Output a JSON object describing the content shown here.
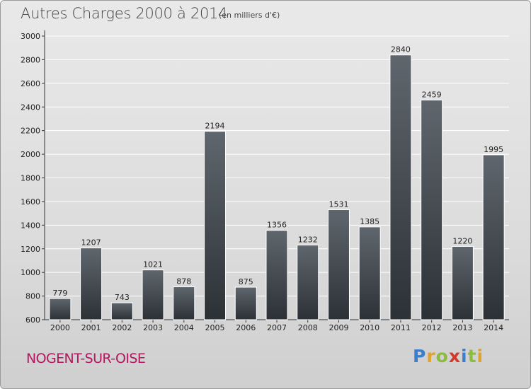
{
  "header": {
    "title": "Autres Charges 2000 à 2014",
    "subtitle": "(en milliers d'€)"
  },
  "footer": {
    "commune": "NOGENT-SUR-OISE",
    "logo_letters": [
      {
        "ch": "P",
        "color": "#3a7fcf"
      },
      {
        "ch": "r",
        "color": "#e0a32a"
      },
      {
        "ch": "o",
        "color": "#8cbd3a"
      },
      {
        "ch": "x",
        "color": "#d03a2a"
      },
      {
        "ch": "i",
        "color": "#3a7fcf"
      },
      {
        "ch": "t",
        "color": "#8cbd3a"
      },
      {
        "ch": "i",
        "color": "#e0a32a"
      }
    ]
  },
  "chart_data": {
    "type": "bar",
    "title": "Autres Charges 2000 à 2014",
    "subtitle": "(en milliers d'€)",
    "categories": [
      "2000",
      "2001",
      "2002",
      "2003",
      "2004",
      "2005",
      "2006",
      "2007",
      "2008",
      "2009",
      "2010",
      "2011",
      "2012",
      "2013",
      "2014"
    ],
    "values": [
      779,
      1207,
      743,
      1021,
      878,
      2194,
      875,
      1356,
      1232,
      1531,
      1385,
      2840,
      2459,
      1220,
      1995
    ],
    "ylim": [
      600,
      3000
    ],
    "yticks": [
      600,
      800,
      1000,
      1200,
      1400,
      1600,
      1800,
      2000,
      2200,
      2400,
      2600,
      2800,
      3000
    ],
    "grid": true,
    "bar_color_top": "#5f666d",
    "bar_color_bottom": "#2c3136"
  }
}
